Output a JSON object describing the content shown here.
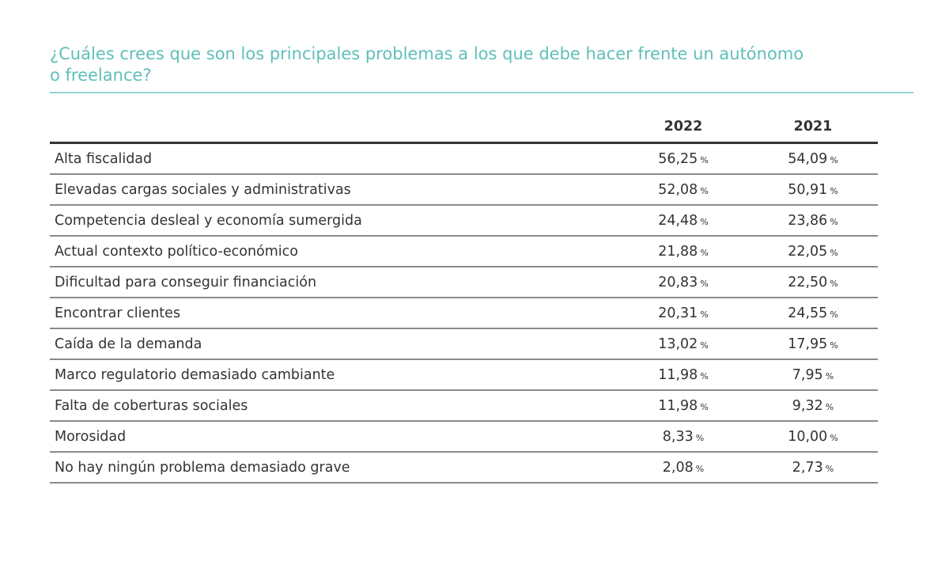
{
  "title": {
    "line1": "¿Cuáles crees que son los principales problemas a los que debe hacer frente un autónomo",
    "line2": "o freelance?"
  },
  "accent_color": "#5fbfb8",
  "table": {
    "columns": [
      "",
      "2022",
      "2021"
    ],
    "rows": [
      {
        "label": "Alta fiscalidad",
        "v2022": "56,25",
        "v2021": "54,09"
      },
      {
        "label": "Elevadas cargas sociales y administrativas",
        "v2022": "52,08",
        "v2021": "50,91"
      },
      {
        "label": "Competencia desleal y economía sumergida",
        "v2022": "24,48",
        "v2021": "23,86"
      },
      {
        "label": "Actual contexto político-económico",
        "v2022": "21,88",
        "v2021": "22,05"
      },
      {
        "label": "Dificultad para conseguir financiación",
        "v2022": "20,83",
        "v2021": "22,50"
      },
      {
        "label": "Encontrar clientes",
        "v2022": "20,31",
        "v2021": "24,55"
      },
      {
        "label": "Caída de la demanda",
        "v2022": "13,02",
        "v2021": "17,95"
      },
      {
        "label": "Marco regulatorio demasiado cambiante",
        "v2022": "11,98",
        "v2021": "7,95"
      },
      {
        "label": "Falta de coberturas sociales",
        "v2022": "11,98",
        "v2021": "9,32"
      },
      {
        "label": "Morosidad",
        "v2022": "8,33",
        "v2021": "10,00"
      },
      {
        "label": "No hay ningún problema demasiado grave",
        "v2022": "2,08",
        "v2021": "2,73"
      }
    ],
    "unit": "%"
  }
}
